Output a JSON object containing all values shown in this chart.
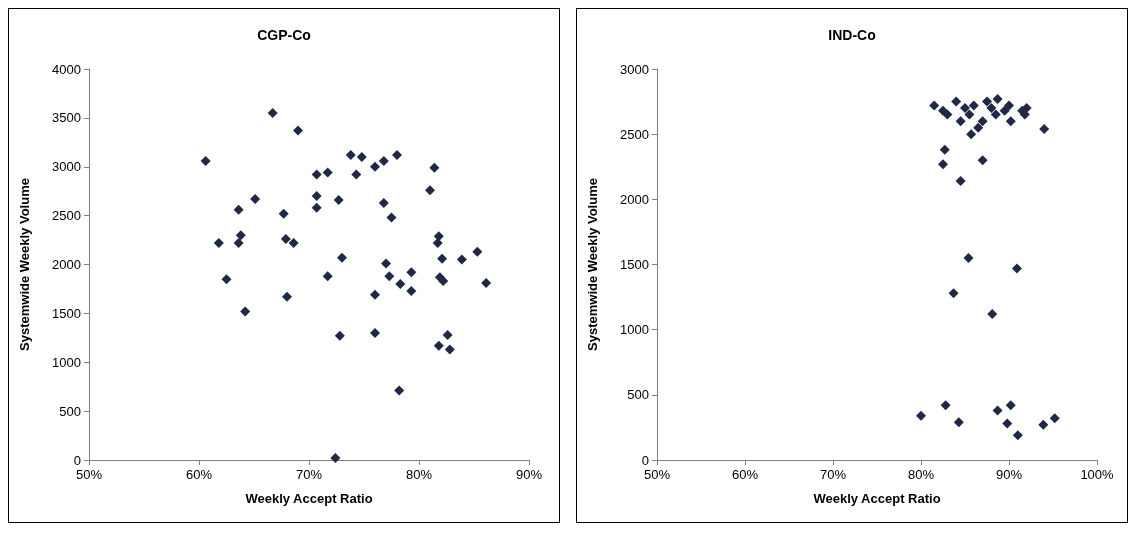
{
  "chart_data": [
    {
      "type": "scatter",
      "title": "CGP-Co",
      "xlabel": "Weekly Accept Ratio",
      "ylabel": "Systemwide Weekly Volume",
      "marker": "diamond",
      "grid": false,
      "xlim": [
        50,
        90
      ],
      "xticks": [
        {
          "value": 50,
          "label": "50%"
        },
        {
          "value": 60,
          "label": "60%"
        },
        {
          "value": 70,
          "label": "70%"
        },
        {
          "value": 80,
          "label": "80%"
        },
        {
          "value": 90,
          "label": "90%"
        }
      ],
      "ylim": [
        0,
        4000
      ],
      "yticks": [
        0,
        500,
        1000,
        1500,
        2000,
        2500,
        3000,
        3500,
        4000
      ],
      "series": [
        {
          "color": "#1f2847",
          "x": [
            60.6,
            66.7,
            69.0,
            65.1,
            63.6,
            67.7,
            63.8,
            61.8,
            63.6,
            67.9,
            68.6,
            62.5,
            68.0,
            64.2,
            73.8,
            74.8,
            78.0,
            76.0,
            76.8,
            70.7,
            71.7,
            74.3,
            81.4,
            81.0,
            70.7,
            70.7,
            72.7,
            76.8,
            77.5,
            81.8,
            81.7,
            73.0,
            77.0,
            82.1,
            83.9,
            85.3,
            71.7,
            77.3,
            79.3,
            78.3,
            79.3,
            81.9,
            82.2,
            86.1,
            76.0,
            72.8,
            76.0,
            82.6,
            81.8,
            82.8,
            78.2,
            72.4
          ],
          "values": [
            3060,
            3550,
            3370,
            2670,
            2560,
            2520,
            2300,
            2220,
            2220,
            2260,
            2220,
            1850,
            1670,
            1520,
            3120,
            3100,
            3120,
            3000,
            3060,
            2920,
            2940,
            2920,
            2990,
            2760,
            2700,
            2580,
            2660,
            2630,
            2480,
            2290,
            2220,
            2070,
            2010,
            2060,
            2050,
            2130,
            1880,
            1880,
            1920,
            1800,
            1730,
            1870,
            1830,
            1810,
            1690,
            1270,
            1300,
            1280,
            1170,
            1130,
            710,
            20
          ]
        }
      ]
    },
    {
      "type": "scatter",
      "title": "IND-Co",
      "xlabel": "Weekly Accept Ratio",
      "ylabel": "Systemwide Weekly Volume",
      "marker": "diamond",
      "grid": false,
      "xlim": [
        50,
        100
      ],
      "xticks": [
        {
          "value": 50,
          "label": "50%"
        },
        {
          "value": 60,
          "label": "60%"
        },
        {
          "value": 70,
          "label": "70%"
        },
        {
          "value": 80,
          "label": "80%"
        },
        {
          "value": 90,
          "label": "90%"
        },
        {
          "value": 100,
          "label": "100%"
        }
      ],
      "ylim": [
        0,
        3000
      ],
      "yticks": [
        0,
        500,
        1000,
        1500,
        2000,
        2500,
        3000
      ],
      "series": [
        {
          "color": "#1f2847",
          "x": [
            85.4,
            90.9,
            83.7,
            88.1,
            80.0,
            82.8,
            84.3,
            88.7,
            90.2,
            89.8,
            91.0,
            93.9,
            95.2,
            81.5,
            82.5,
            83.0,
            84.0,
            84.5,
            85.0,
            85.5,
            85.7,
            86.0,
            86.5,
            87.0,
            87.5,
            88.0,
            88.5,
            88.7,
            89.5,
            90.0,
            90.2,
            91.5,
            92.0,
            91.8,
            94.0,
            82.7,
            82.5,
            87.0,
            84.5
          ],
          "values": [
            1550,
            1470,
            1280,
            1120,
            340,
            420,
            290,
            380,
            420,
            280,
            190,
            270,
            320,
            2720,
            2680,
            2650,
            2750,
            2600,
            2700,
            2650,
            2500,
            2720,
            2550,
            2600,
            2750,
            2700,
            2650,
            2770,
            2680,
            2720,
            2600,
            2680,
            2700,
            2650,
            2540,
            2380,
            2270,
            2300,
            2140
          ]
        }
      ]
    }
  ]
}
